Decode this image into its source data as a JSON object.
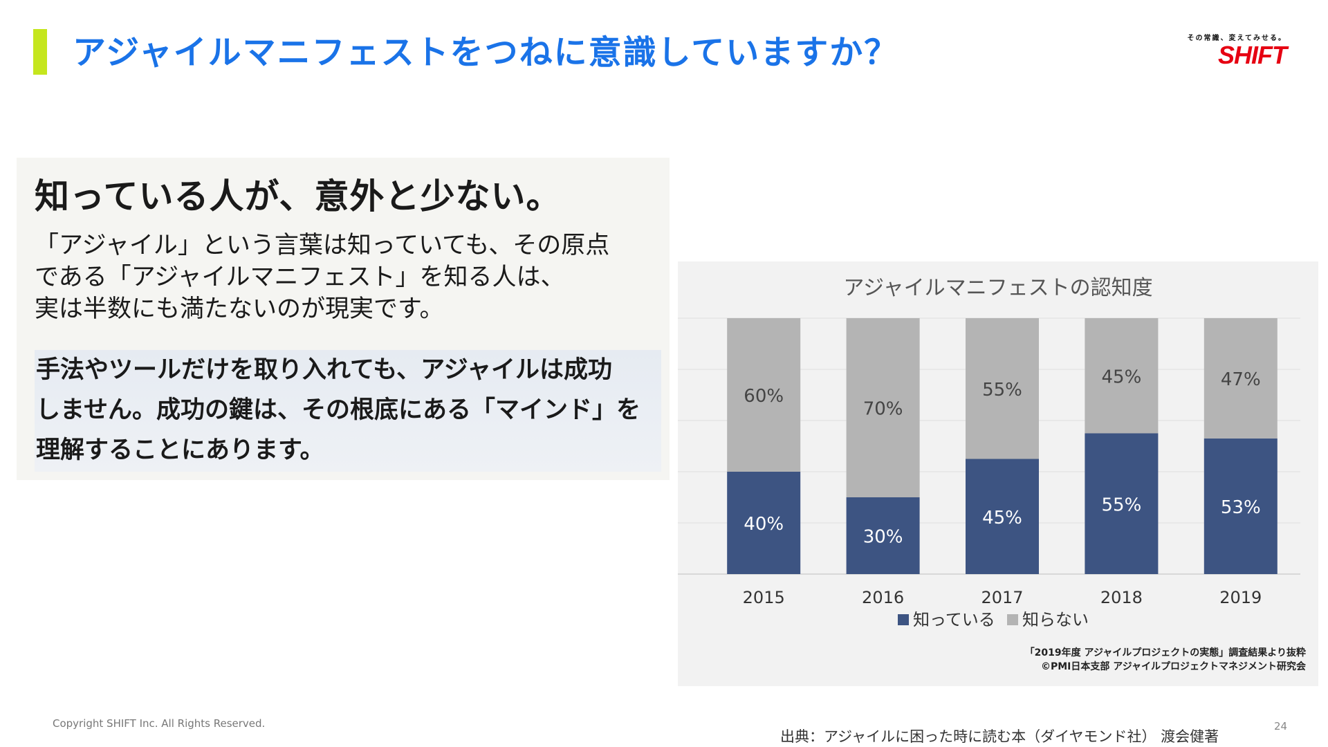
{
  "slide": {
    "title": "アジャイルマニフェストをつねに意識していますか？",
    "logo": {
      "tagline": "その常識、変えてみせる。",
      "word": "SHIFT"
    },
    "copyright": "Copyright SHIFT Inc. All Rights Reserved.",
    "citation": "出典：アジャイルに困った時に読む本（ダイヤモンド社） 渡会健著",
    "page_number": "24",
    "accent_color": "#c5e61e",
    "title_color": "#1a73e8"
  },
  "text_panel": {
    "heading": "知っている人が、意外と少ない。",
    "paragraph_lines": [
      "「アジャイル」という言葉は知っていても、その原点",
      "である「アジャイルマニフェスト」を知る人は、",
      "実は半数にも満たないのが現実です。"
    ],
    "highlight_lines": [
      "手法やツールだけを取り入れても、アジャイルは成功",
      "しません。成功の鍵は、その根底にある「マインド」を",
      "理解することにあります。"
    ]
  },
  "chart_data": {
    "type": "bar",
    "stacked": true,
    "title": "アジャイルマニフェストの認知度",
    "categories": [
      "2015",
      "2016",
      "2017",
      "2018",
      "2019"
    ],
    "series": [
      {
        "name": "知っている",
        "values": [
          40,
          30,
          45,
          55,
          53
        ],
        "labels": [
          "40%",
          "30%",
          "45%",
          "55%",
          "53%"
        ],
        "color": "#3d5482"
      },
      {
        "name": "知らない",
        "values": [
          60,
          70,
          55,
          45,
          47
        ],
        "labels": [
          "60%",
          "70%",
          "55%",
          "45%",
          "47%"
        ],
        "color": "#b4b4b4"
      }
    ],
    "ylim": [
      0,
      100
    ],
    "grid": true,
    "legend_position": "bottom",
    "source_lines": [
      "「2019年度 アジャイルプロジェクトの実態」調査結果より抜粋",
      "©PMI日本支部 アジャイルプロジェクトマネジメント研究会"
    ]
  }
}
